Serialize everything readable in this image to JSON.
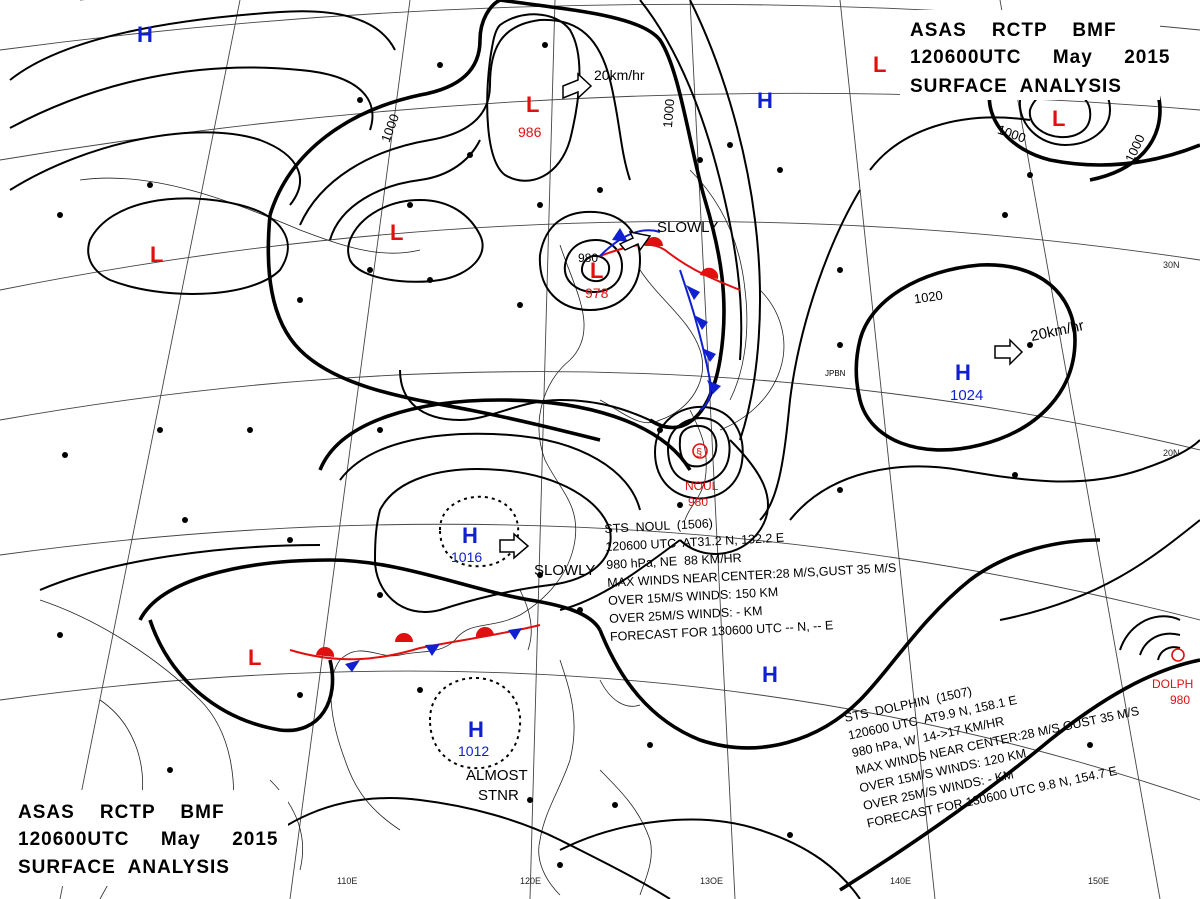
{
  "header_top": {
    "line1": "ASAS    RCTP    BMF",
    "line2": "120600UTC     May     2015",
    "line3": "SURFACE  ANALYSIS"
  },
  "header_bottom": {
    "line1": "ASAS    RCTP    BMF",
    "line2": "120600UTC     May     2015",
    "line3": "SURFACE  ANALYSIS"
  },
  "colors": {
    "high": "#1020d0",
    "low": "#e01010",
    "isobar": "#000000",
    "warm_front": "#e01010",
    "cold_front": "#1020d0"
  },
  "pressure_centers": [
    {
      "kind": "H",
      "value": ""
    },
    {
      "kind": "L",
      "value": "986",
      "motion": "20km/hr"
    },
    {
      "kind": "L",
      "value": ""
    },
    {
      "kind": "L",
      "value": ""
    },
    {
      "kind": "L",
      "value": "978",
      "motion": "SLOWLY"
    },
    {
      "kind": "H",
      "value": ""
    },
    {
      "kind": "L",
      "value": ""
    },
    {
      "kind": "H",
      "value": "1024",
      "motion": "20km/hr"
    },
    {
      "kind": "H",
      "value": "1016",
      "motion": "SLOWLY"
    },
    {
      "kind": "L",
      "value": ""
    },
    {
      "kind": "H",
      "value": "1012",
      "motion": "ALMOST STNR"
    },
    {
      "kind": "H",
      "value": ""
    }
  ],
  "isobar_labels": [
    "1000",
    "1000",
    "1000",
    "1020",
    "1000"
  ],
  "typhoons": {
    "noul": {
      "name": "NOUL",
      "pressure": "980"
    },
    "dolphin": {
      "name": "DOLPH",
      "pressure": "980"
    }
  },
  "advisory_noul": {
    "l1": "STS  NOUL  (1506)",
    "l2": "120600 UTC  AT31.2 N, 132.2 E",
    "l3": "980 hPa, NE  88 KM/HR",
    "l4": "MAX WINDS NEAR CENTER:28 M/S,GUST 35 M/S",
    "l5": "OVER 15M/S WINDS: 150 KM",
    "l6": "OVER 25M/S WINDS: - KM",
    "l7": "FORECAST FOR 130600 UTC -- N, -- E"
  },
  "advisory_dolphin": {
    "l1": "STS  DOLPHIN  (1507)",
    "l2": "120600 UTC  AT9.9 N, 158.1 E",
    "l3": "980 hPa, W  14->17 KM/HR",
    "l4": "MAX WINDS NEAR CENTER:28 M/S,GUST 35 M/S",
    "l5": "OVER 15M/S WINDS: 120 KM",
    "l6": "OVER 25M/S WINDS: - KM",
    "l7": "FORECAST FOR 130600 UTC 9.8 N, 154.7 E"
  },
  "axis_labels": {
    "lon": [
      "110E",
      "120E",
      "13OE",
      "140E",
      "150E"
    ],
    "lat": [
      "30N",
      "20N"
    ]
  },
  "misc": {
    "low_978_inner": "980",
    "jpbn": "JPBN"
  }
}
